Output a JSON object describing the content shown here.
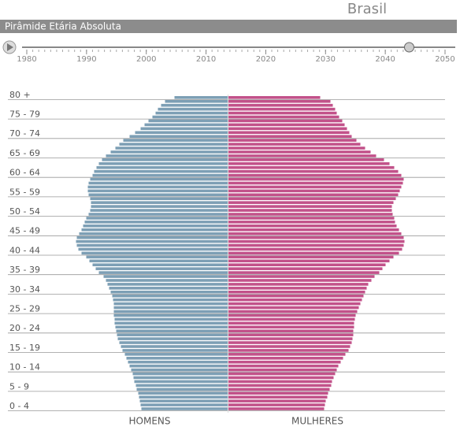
{
  "header": {
    "country": "Brasil",
    "title": "Pirâmide Etária Absoluta"
  },
  "slider": {
    "xlim": [
      1980,
      2050
    ],
    "xticks": [
      1980,
      1990,
      2000,
      2010,
      2020,
      2030,
      2040,
      2050
    ],
    "value": 2044
  },
  "chart_data": {
    "type": "population_pyramid",
    "categories": [
      "0 - 4",
      null,
      null,
      null,
      null,
      "5 - 9",
      null,
      null,
      null,
      null,
      "10 - 14",
      null,
      null,
      null,
      null,
      "15 - 19",
      null,
      null,
      null,
      null,
      "20 - 24",
      null,
      null,
      null,
      null,
      "25 - 29",
      null,
      null,
      null,
      null,
      "30 - 34",
      null,
      null,
      null,
      null,
      "35 - 39",
      null,
      null,
      null,
      null,
      "40 - 44",
      null,
      null,
      null,
      null,
      "45 - 49",
      null,
      null,
      null,
      null,
      "50 - 54",
      null,
      null,
      null,
      null,
      "55 - 59",
      null,
      null,
      null,
      null,
      "60 - 64",
      null,
      null,
      null,
      null,
      "65 - 69",
      null,
      null,
      null,
      null,
      "70 - 74",
      null,
      null,
      null,
      null,
      "75 - 79",
      null,
      null,
      null,
      null,
      "80 +"
    ],
    "series": [
      {
        "name": "HOMENS",
        "color": "#7d9fb5",
        "values": [
          110,
          111,
          112,
          113,
          114,
          116,
          117,
          119,
          120,
          121,
          123,
          125,
          127,
          129,
          131,
          134,
          136,
          138,
          140,
          141,
          142,
          143,
          144,
          144,
          145,
          145,
          145,
          145,
          146,
          147,
          149,
          151,
          153,
          155,
          158,
          164,
          168,
          172,
          176,
          180,
          186,
          190,
          192,
          193,
          192,
          189,
          186,
          184,
          182,
          180,
          177,
          175,
          174,
          174,
          175,
          177,
          178,
          178,
          177,
          175,
          172,
          170,
          167,
          164,
          160,
          155,
          149,
          143,
          138,
          133,
          125,
          118,
          111,
          106,
          101,
          96,
          92,
          89,
          85,
          80,
          68
        ]
      },
      {
        "name": "MULHERES",
        "color": "#c2528a",
        "values": [
          122,
          123,
          124,
          126,
          127,
          129,
          131,
          132,
          134,
          136,
          138,
          140,
          143,
          146,
          149,
          153,
          155,
          157,
          158,
          159,
          159,
          160,
          160,
          161,
          162,
          164,
          166,
          168,
          170,
          172,
          174,
          176,
          178,
          182,
          186,
          192,
          196,
          200,
          205,
          210,
          217,
          221,
          223,
          224,
          223,
          220,
          217,
          214,
          212,
          211,
          209,
          208,
          208,
          210,
          213,
          216,
          218,
          220,
          222,
          223,
          220,
          216,
          211,
          205,
          198,
          188,
          181,
          174,
          168,
          163,
          157,
          154,
          151,
          148,
          145,
          141,
          138,
          136,
          133,
          130,
          117
        ]
      }
    ]
  }
}
